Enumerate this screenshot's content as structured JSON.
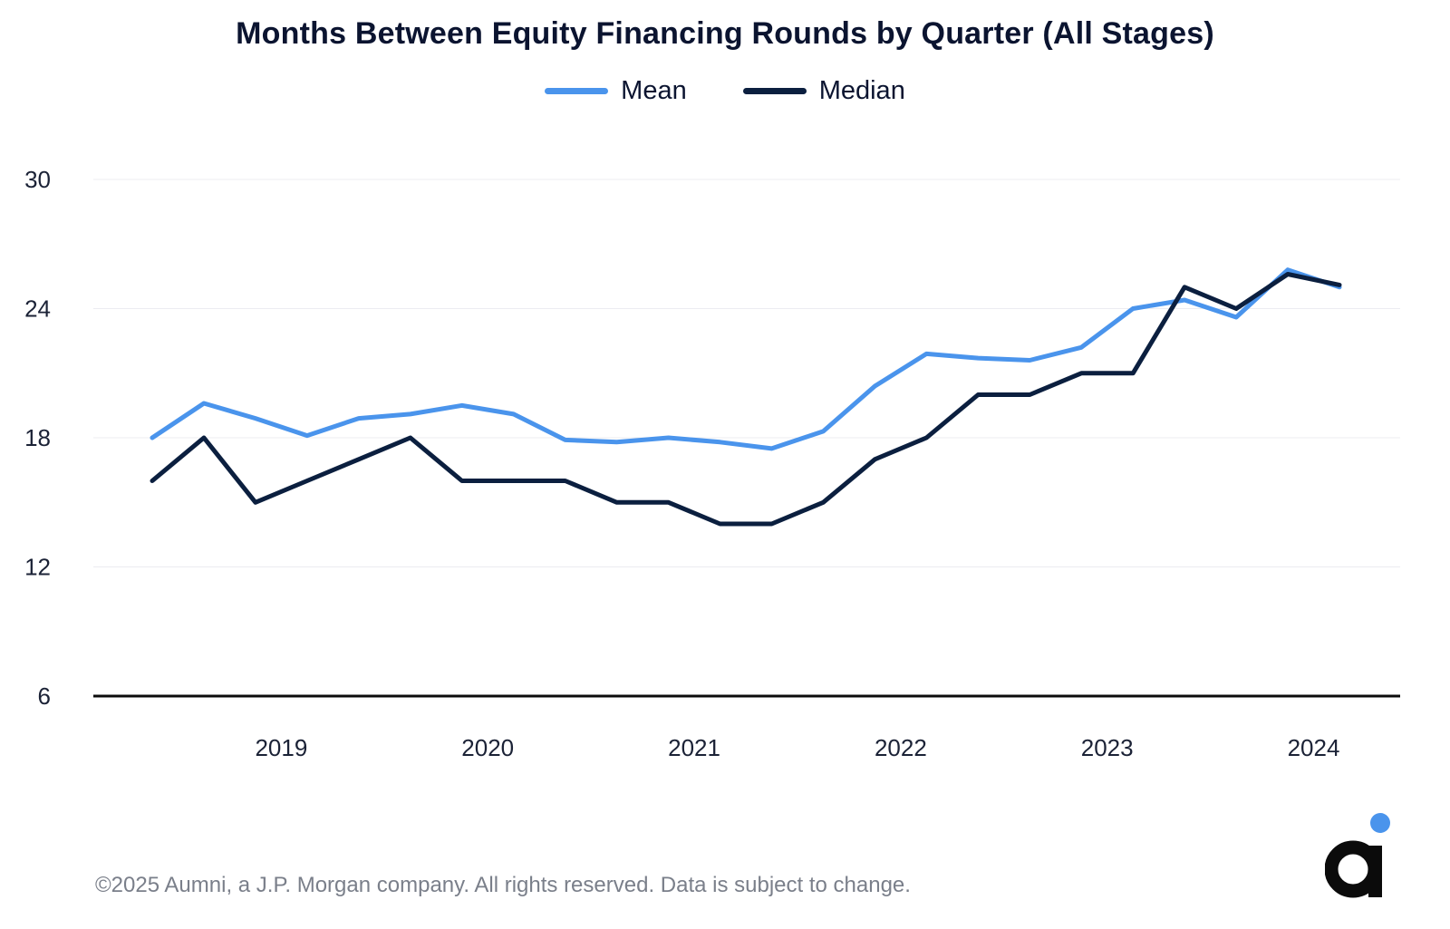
{
  "chart_data": {
    "type": "line",
    "title": "Months Between Equity Financing Rounds by Quarter (All Stages)",
    "xlabel": "",
    "ylabel": "",
    "ylim": [
      6,
      30
    ],
    "yticks": [
      6,
      12,
      18,
      24,
      30
    ],
    "x_tick_labels": [
      "2019",
      "2020",
      "2021",
      "2022",
      "2023",
      "2024"
    ],
    "x": [
      "2018-Q3",
      "2018-Q4",
      "2019-Q1",
      "2019-Q2",
      "2019-Q3",
      "2019-Q4",
      "2020-Q1",
      "2020-Q2",
      "2020-Q3",
      "2020-Q4",
      "2021-Q1",
      "2021-Q2",
      "2021-Q3",
      "2021-Q4",
      "2022-Q1",
      "2022-Q2",
      "2022-Q3",
      "2022-Q4",
      "2023-Q1",
      "2023-Q2",
      "2023-Q3",
      "2023-Q4",
      "2024-Q1",
      "2024-Q2"
    ],
    "grid": "horizontal",
    "legend_position": "top-center",
    "series": [
      {
        "name": "Mean",
        "color": "#4a94ec",
        "values": [
          18.0,
          19.6,
          18.9,
          18.1,
          18.9,
          19.1,
          19.5,
          19.1,
          17.9,
          17.8,
          18.0,
          17.8,
          17.5,
          18.3,
          20.4,
          21.9,
          21.7,
          21.6,
          22.2,
          24.0,
          24.4,
          23.6,
          25.8,
          25.0
        ]
      },
      {
        "name": "Median",
        "color": "#0b1f3f",
        "values": [
          16.0,
          18.0,
          15.0,
          16.0,
          17.0,
          18.0,
          16.0,
          16.0,
          16.0,
          15.0,
          15.0,
          14.0,
          14.0,
          15.0,
          17.0,
          18.0,
          20.0,
          20.0,
          21.0,
          21.0,
          25.0,
          24.0,
          25.6,
          25.1
        ]
      }
    ]
  },
  "footer": "©2025 Aumni, a J.P. Morgan company. All rights reserved. Data is subject to change.",
  "logo": {
    "name": "aumni-logo",
    "dot_color": "#4a94ec",
    "letter_color": "#0b0b0b"
  }
}
